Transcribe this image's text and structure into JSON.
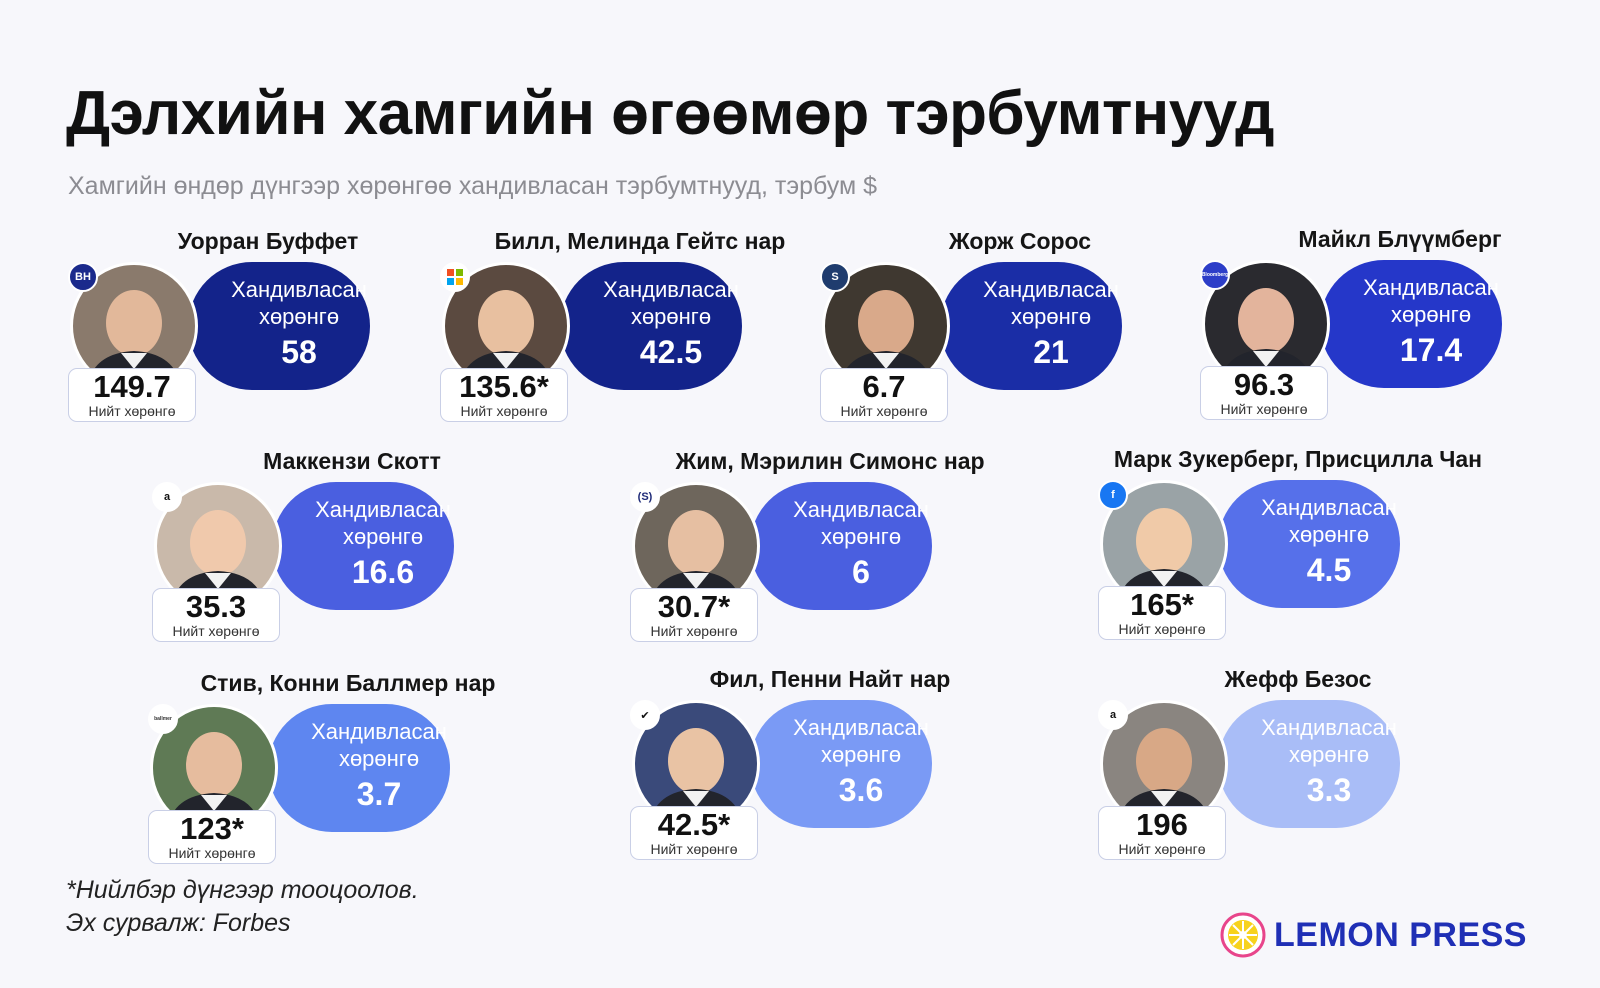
{
  "title": "Дэлхийн хамгийн өгөөмөр тэрбумтнууд",
  "subtitle": "Хамгийн өндөр дүнгээр хөрөнгөө хандивласан тэрбумтнууд, тэрбум $",
  "donated_label_line1": "Хандивласан",
  "donated_label_line2": "хөрөнгө",
  "net_worth_label": "Нийт хөрөнгө",
  "chart_data": {
    "type": "bar",
    "title": "Дэлхийн хамгийн өгөөмөр тэрбумтнууд",
    "subtitle": "Хамгийн өндөр дүнгээр хөрөнгөө хандивласан тэрбумтнууд, тэрбум $",
    "categories": [
      "Уорран Буффет",
      "Билл, Мелинда Гейтс нар",
      "Жорж Сорос",
      "Майкл Блүүмберг",
      "Маккензи Скотт",
      "Жим, Мэрилин Симонс нар",
      "Марк Зукерберг, Присцилла Чан",
      "Стив, Конни Баллмер нар",
      "Фил, Пенни Найт нар",
      "Жефф Безос"
    ],
    "series": [
      {
        "name": "Хандивласан хөрөнгө",
        "values": [
          58,
          42.5,
          21,
          17.4,
          16.6,
          6,
          4.5,
          3.7,
          3.6,
          3.3
        ]
      },
      {
        "name": "Нийт хөрөнгө",
        "values": [
          149.7,
          135.6,
          6.7,
          96.3,
          35.3,
          30.7,
          165,
          123,
          42.5,
          196
        ]
      }
    ]
  },
  "philanthropists": [
    {
      "name": "Уорран Буффет",
      "donated": "58",
      "net_worth": "149.7",
      "pill_color": "#13238a",
      "photo_bg": "#8a7a6c",
      "skin": "#e2b89a",
      "logo": "BH",
      "logo_icon": "berkshire-hathaway-icon",
      "logo_bg": "#1b2a8c",
      "logo_fg": "#ffffff"
    },
    {
      "name": "Билл, Мелинда Гейтс нар",
      "donated": "42.5",
      "net_worth": "135.6*",
      "pill_color": "#13238a",
      "photo_bg": "#5b4a40",
      "skin": "#e8c0a0",
      "logo": "",
      "logo_icon": "microsoft-icon",
      "logo_bg": "#ffffff",
      "logo_fg": "#f25022"
    },
    {
      "name": "Жорж Сорос",
      "donated": "21",
      "net_worth": "6.7",
      "pill_color": "#1a2da6",
      "photo_bg": "#3f3830",
      "skin": "#d9a98a",
      "logo": "S",
      "logo_icon": "soros-icon",
      "logo_bg": "#1f3c6e",
      "logo_fg": "#ffffff"
    },
    {
      "name": "Майкл Блүүмберг",
      "donated": "17.4",
      "net_worth": "96.3",
      "pill_color": "#2537c9",
      "photo_bg": "#2a2a2f",
      "skin": "#e3b49c",
      "logo": "Bloomberg",
      "logo_icon": "bloomberg-icon",
      "logo_bg": "#2d3ec8",
      "logo_fg": "#ffffff"
    },
    {
      "name": "Маккензи Скотт",
      "donated": "16.6",
      "net_worth": "35.3",
      "pill_color": "#4a5fe0",
      "photo_bg": "#c9b9aa",
      "skin": "#f0c9ac",
      "logo": "a",
      "logo_icon": "amazon-icon",
      "logo_bg": "#ffffff",
      "logo_fg": "#111111"
    },
    {
      "name": "Жим, Мэрилин Симонс нар",
      "donated": "6",
      "net_worth": "30.7*",
      "pill_color": "#4a5fe0",
      "photo_bg": "#6e665c",
      "skin": "#e6bfa2",
      "logo": "(S)",
      "logo_icon": "simons-foundation-icon",
      "logo_bg": "#ffffff",
      "logo_fg": "#1e2a78"
    },
    {
      "name": "Марк Зукерберг, Присцилла Чан",
      "donated": "4.5",
      "net_worth": "165*",
      "pill_color": "#5670ea",
      "photo_bg": "#9aa3a6",
      "skin": "#f0caa8",
      "logo": "f",
      "logo_icon": "facebook-icon",
      "logo_bg": "#1877f2",
      "logo_fg": "#ffffff"
    },
    {
      "name": "Стив, Конни Баллмер нар",
      "donated": "3.7",
      "net_worth": "123*",
      "pill_color": "#5e86f0",
      "photo_bg": "#5f7a55",
      "skin": "#e6bc9e",
      "logo": "ballmer",
      "logo_icon": "ballmer-group-icon",
      "logo_bg": "#ffffff",
      "logo_fg": "#333333"
    },
    {
      "name": "Фил, Пенни Найт нар",
      "donated": "3.6",
      "net_worth": "42.5*",
      "pill_color": "#7a9af5",
      "photo_bg": "#3a4a7a",
      "skin": "#e9c3a4",
      "logo": "✔",
      "logo_icon": "nike-swoosh-icon",
      "logo_bg": "#ffffff",
      "logo_fg": "#111111"
    },
    {
      "name": "Жефф Безос",
      "donated": "3.3",
      "net_worth": "196",
      "pill_color": "#a9bdf7",
      "photo_bg": "#8a8580",
      "skin": "#d8a886",
      "logo": "a",
      "logo_icon": "amazon-icon",
      "logo_bg": "#ffffff",
      "logo_fg": "#111111"
    }
  ],
  "footnote_line1": "*Нийлбэр дүнгээр тооцоолов.",
  "footnote_line2": "Эх сурвалж: Forbes",
  "brand": "LEMON PRESS",
  "colors": {
    "dark": "#13238a",
    "accent": "#1f2fb5",
    "lemon": "#f7d21c",
    "lemon_ring": "#e8458b"
  }
}
